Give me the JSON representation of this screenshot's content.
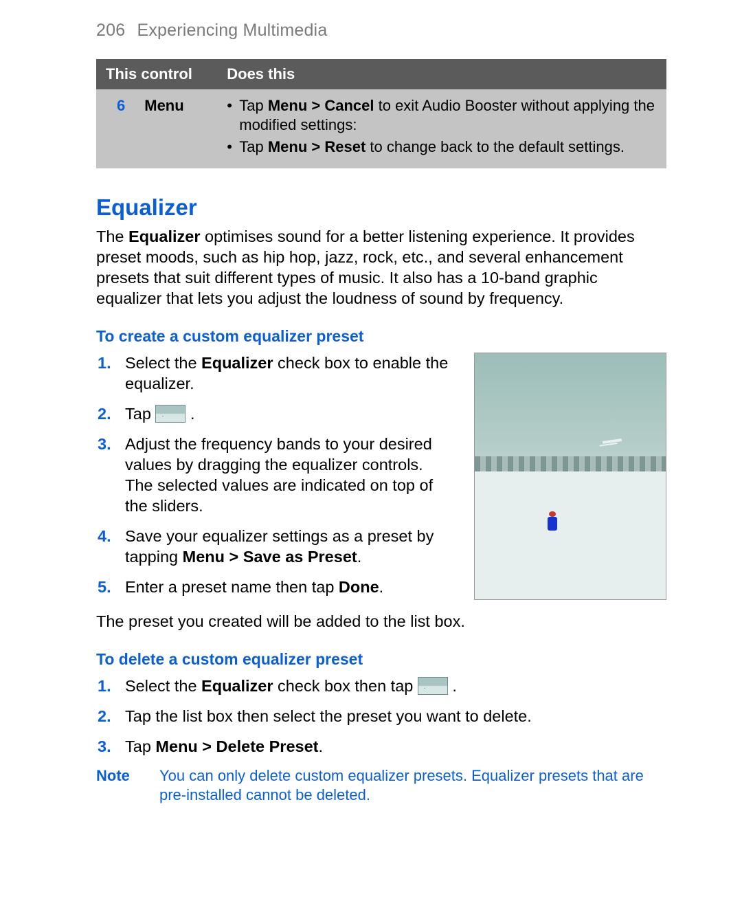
{
  "page": {
    "number": "206",
    "chapter": "Experiencing Multimedia"
  },
  "colors": {
    "accent_blue": "#0b5fd6",
    "header_gray": "#7a7a7a",
    "table_header_bg": "#5b5b5b",
    "table_body_bg": "#c4c4c4",
    "body_text": "#000000",
    "page_bg": "#ffffff"
  },
  "table": {
    "headers": {
      "col1": "This control",
      "col2": "Does this"
    },
    "row": {
      "num": "6",
      "label": "Menu",
      "bullets": {
        "b1": {
          "pre": "Tap ",
          "bold": "Menu > Cancel",
          "post": " to exit Audio Booster without applying the modified settings:"
        },
        "b2": {
          "pre": "Tap ",
          "bold": "Menu > Reset",
          "post": " to change back to the default settings."
        }
      }
    }
  },
  "section": {
    "title": "Equalizer",
    "intro": {
      "pre": "The ",
      "bold": "Equalizer",
      "post": " optimises sound for a better listening experience. It provides preset moods, such as hip hop, jazz, rock, etc., and several enhancement presets that suit different types of music. It also has a 10-band graphic equalizer that lets you adjust the loudness of sound by frequency."
    }
  },
  "create": {
    "heading": "To create a custom equalizer preset",
    "steps": {
      "s1": {
        "num": "1.",
        "pre": "Select the ",
        "bold": "Equalizer",
        "post": " check box to enable the equalizer."
      },
      "s2": {
        "num": "2.",
        "pre": "Tap ",
        "post": " ."
      },
      "s3": {
        "num": "3.",
        "text": "Adjust the frequency bands to your desired values by dragging the equalizer controls. The selected values are indicated on top of the sliders."
      },
      "s4": {
        "num": "4.",
        "pre": "Save your equalizer settings as a preset by tapping ",
        "bold": "Menu > Save as Preset",
        "post": "."
      },
      "s5": {
        "num": "5.",
        "pre": "Enter a preset name then tap ",
        "bold": "Done",
        "post": "."
      }
    },
    "after": "The preset you created will be added to the list box."
  },
  "delete": {
    "heading": "To delete a custom equalizer preset",
    "steps": {
      "s1": {
        "num": "1.",
        "pre": "Select the ",
        "bold": "Equalizer",
        "mid": " check box then tap ",
        "post": " ."
      },
      "s2": {
        "num": "2.",
        "text": "Tap the list box then select the preset you want to delete."
      },
      "s3": {
        "num": "3.",
        "pre": "Tap ",
        "bold": "Menu > Delete Preset",
        "post": "."
      }
    }
  },
  "note": {
    "label": "Note",
    "text": "You can only delete custom equalizer presets. Equalizer presets that are pre-installed cannot be deleted."
  }
}
